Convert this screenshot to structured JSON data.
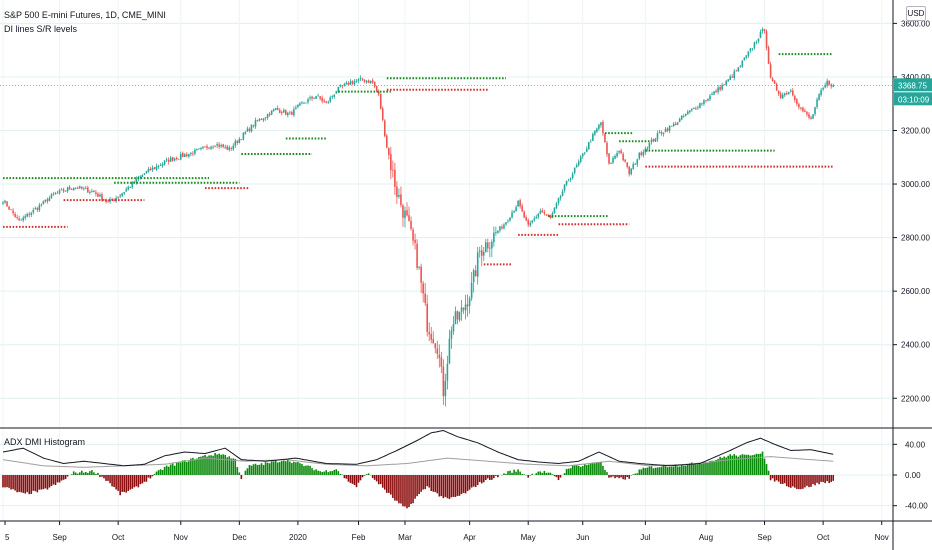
{
  "header": {
    "symbol_title": "S&P 500 E-mini Futures, 1D, CME_MINI",
    "indicator_title": "DI lines S/R levels",
    "currency_button": "USD"
  },
  "price_labels": {
    "last_price": "3368.75",
    "countdown": "03:10:09",
    "last_price_color": "#26a69a"
  },
  "sub_pane": {
    "title": "ADX DMI Histogram"
  },
  "colors": {
    "up": "#26a69a",
    "down": "#ef5350",
    "support": "#d32f2f",
    "resistance": "#1b8a1b",
    "hist_pos": "#0a8a0a",
    "hist_neg": "#8b0d0d",
    "adx_line": "#131722",
    "di_line": "#9e9e9e"
  },
  "chart_data": [
    {
      "type": "candlestick",
      "title": "S&P 500 E-mini Futures, 1D, CME_MINI",
      "ylim": [
        2130,
        3650
      ],
      "y_ticks": [
        2200,
        2400,
        2600,
        2800,
        3000,
        3200,
        3400,
        3600
      ],
      "y_tick_labels": [
        "2200.00",
        "2400.00",
        "2600.00",
        "2800.00",
        "3000.00",
        "3200.00",
        "3400.00",
        "3600.00"
      ],
      "x_axis_labels": [
        "5",
        "Sep",
        "Oct",
        "Nov",
        "Dec",
        "2020",
        "Feb",
        "Mar",
        "Apr",
        "May",
        "Jun",
        "Jul",
        "Aug",
        "Sep",
        "Oct",
        "Nov"
      ],
      "close_anchors": [
        [
          0,
          2940
        ],
        [
          8,
          2860
        ],
        [
          15,
          2900
        ],
        [
          25,
          2960
        ],
        [
          35,
          2990
        ],
        [
          45,
          2970
        ],
        [
          52,
          2930
        ],
        [
          58,
          2960
        ],
        [
          70,
          3040
        ],
        [
          82,
          3090
        ],
        [
          95,
          3120
        ],
        [
          105,
          3150
        ],
        [
          112,
          3130
        ],
        [
          125,
          3230
        ],
        [
          135,
          3280
        ],
        [
          142,
          3260
        ],
        [
          148,
          3300
        ],
        [
          155,
          3330
        ],
        [
          160,
          3300
        ],
        [
          165,
          3350
        ],
        [
          172,
          3380
        ],
        [
          178,
          3390
        ],
        [
          183,
          3380
        ],
        [
          186,
          3330
        ],
        [
          190,
          3140
        ],
        [
          195,
          2970
        ],
        [
          200,
          2860
        ],
        [
          205,
          2720
        ],
        [
          210,
          2480
        ],
        [
          215,
          2400
        ],
        [
          218,
          2230
        ],
        [
          222,
          2470
        ],
        [
          227,
          2520
        ],
        [
          232,
          2610
        ],
        [
          236,
          2750
        ],
        [
          242,
          2800
        ],
        [
          248,
          2850
        ],
        [
          255,
          2930
        ],
        [
          260,
          2840
        ],
        [
          266,
          2900
        ],
        [
          271,
          2870
        ],
        [
          278,
          2990
        ],
        [
          285,
          3080
        ],
        [
          292,
          3180
        ],
        [
          296,
          3230
        ],
        [
          300,
          3070
        ],
        [
          305,
          3130
        ],
        [
          310,
          3040
        ],
        [
          315,
          3110
        ],
        [
          320,
          3150
        ],
        [
          325,
          3190
        ],
        [
          332,
          3220
        ],
        [
          338,
          3260
        ],
        [
          345,
          3300
        ],
        [
          352,
          3340
        ],
        [
          358,
          3380
        ],
        [
          364,
          3430
        ],
        [
          370,
          3500
        ],
        [
          374,
          3550
        ],
        [
          377,
          3580
        ],
        [
          380,
          3390
        ],
        [
          385,
          3330
        ],
        [
          390,
          3350
        ],
        [
          395,
          3280
        ],
        [
          400,
          3240
        ],
        [
          404,
          3330
        ],
        [
          408,
          3380
        ],
        [
          411,
          3368.75
        ]
      ],
      "sr_levels": [
        {
          "kind": "resistance",
          "price": 3022,
          "start": 0,
          "end": 102
        },
        {
          "kind": "resistance",
          "price": 3005,
          "start": 55,
          "end": 117
        },
        {
          "kind": "support",
          "price": 2985,
          "start": 100,
          "end": 122
        },
        {
          "kind": "support",
          "price": 2940,
          "start": 30,
          "end": 70
        },
        {
          "kind": "support",
          "price": 2840,
          "start": 0,
          "end": 32
        },
        {
          "kind": "resistance",
          "price": 3112,
          "start": 118,
          "end": 153
        },
        {
          "kind": "resistance",
          "price": 3170,
          "start": 140,
          "end": 160
        },
        {
          "kind": "resistance",
          "price": 3345,
          "start": 166,
          "end": 192
        },
        {
          "kind": "resistance",
          "price": 3395,
          "start": 190,
          "end": 249
        },
        {
          "kind": "support",
          "price": 3352,
          "start": 190,
          "end": 240
        },
        {
          "kind": "support",
          "price": 2700,
          "start": 238,
          "end": 252
        },
        {
          "kind": "support",
          "price": 2810,
          "start": 255,
          "end": 275
        },
        {
          "kind": "resistance",
          "price": 2880,
          "start": 270,
          "end": 300
        },
        {
          "kind": "support",
          "price": 2850,
          "start": 275,
          "end": 310
        },
        {
          "kind": "resistance",
          "price": 3190,
          "start": 298,
          "end": 312
        },
        {
          "kind": "resistance",
          "price": 3160,
          "start": 305,
          "end": 320
        },
        {
          "kind": "resistance",
          "price": 3125,
          "start": 318,
          "end": 382
        },
        {
          "kind": "support",
          "price": 3065,
          "start": 318,
          "end": 415
        },
        {
          "kind": "resistance",
          "price": 3485,
          "start": 384,
          "end": 415
        }
      ]
    },
    {
      "type": "histogram_with_lines",
      "title": "ADX DMI Histogram",
      "ylim": [
        -60,
        60
      ],
      "y_ticks": [
        -40,
        0,
        40
      ],
      "y_tick_labels": [
        "-40.00",
        "0.00",
        "40.00"
      ],
      "hist_anchors": [
        [
          0,
          -15
        ],
        [
          10,
          -25
        ],
        [
          20,
          -20
        ],
        [
          28,
          -10
        ],
        [
          35,
          3
        ],
        [
          45,
          5
        ],
        [
          52,
          -8
        ],
        [
          58,
          -25
        ],
        [
          65,
          -18
        ],
        [
          72,
          -5
        ],
        [
          80,
          10
        ],
        [
          90,
          18
        ],
        [
          100,
          25
        ],
        [
          108,
          28
        ],
        [
          115,
          20
        ],
        [
          118,
          -4
        ],
        [
          122,
          12
        ],
        [
          130,
          15
        ],
        [
          140,
          20
        ],
        [
          150,
          12
        ],
        [
          158,
          4
        ],
        [
          165,
          8
        ],
        [
          170,
          -6
        ],
        [
          175,
          -15
        ],
        [
          180,
          3
        ],
        [
          185,
          -8
        ],
        [
          190,
          -22
        ],
        [
          195,
          -35
        ],
        [
          200,
          -45
        ],
        [
          205,
          -28
        ],
        [
          210,
          -15
        ],
        [
          215,
          -25
        ],
        [
          220,
          -32
        ],
        [
          225,
          -28
        ],
        [
          230,
          -22
        ],
        [
          235,
          -12
        ],
        [
          240,
          -6
        ],
        [
          245,
          -2
        ],
        [
          250,
          4
        ],
        [
          255,
          6
        ],
        [
          260,
          -2
        ],
        [
          265,
          5
        ],
        [
          270,
          3
        ],
        [
          275,
          -6
        ],
        [
          280,
          10
        ],
        [
          285,
          12
        ],
        [
          292,
          15
        ],
        [
          296,
          18
        ],
        [
          300,
          -3
        ],
        [
          305,
          -5
        ],
        [
          310,
          -4
        ],
        [
          315,
          6
        ],
        [
          320,
          10
        ],
        [
          330,
          12
        ],
        [
          340,
          14
        ],
        [
          350,
          18
        ],
        [
          360,
          26
        ],
        [
          368,
          25
        ],
        [
          372,
          28
        ],
        [
          376,
          30
        ],
        [
          380,
          -5
        ],
        [
          385,
          -10
        ],
        [
          390,
          -15
        ],
        [
          395,
          -18
        ],
        [
          400,
          -14
        ],
        [
          405,
          -10
        ],
        [
          411,
          -8
        ]
      ],
      "adx_anchors": [
        [
          0,
          30
        ],
        [
          10,
          35
        ],
        [
          20,
          22
        ],
        [
          30,
          15
        ],
        [
          40,
          18
        ],
        [
          50,
          15
        ],
        [
          60,
          12
        ],
        [
          70,
          14
        ],
        [
          80,
          25
        ],
        [
          90,
          30
        ],
        [
          100,
          28
        ],
        [
          110,
          35
        ],
        [
          118,
          20
        ],
        [
          130,
          18
        ],
        [
          145,
          22
        ],
        [
          160,
          15
        ],
        [
          175,
          14
        ],
        [
          185,
          20
        ],
        [
          195,
          32
        ],
        [
          205,
          45
        ],
        [
          212,
          55
        ],
        [
          218,
          58
        ],
        [
          225,
          50
        ],
        [
          235,
          42
        ],
        [
          245,
          30
        ],
        [
          255,
          20
        ],
        [
          265,
          17
        ],
        [
          275,
          15
        ],
        [
          285,
          18
        ],
        [
          295,
          30
        ],
        [
          305,
          18
        ],
        [
          315,
          15
        ],
        [
          330,
          12
        ],
        [
          345,
          15
        ],
        [
          360,
          32
        ],
        [
          368,
          42
        ],
        [
          375,
          48
        ],
        [
          382,
          40
        ],
        [
          390,
          32
        ],
        [
          400,
          33
        ],
        [
          411,
          27
        ]
      ],
      "di_anchors": [
        [
          0,
          20
        ],
        [
          20,
          12
        ],
        [
          40,
          10
        ],
        [
          60,
          12
        ],
        [
          80,
          14
        ],
        [
          100,
          22
        ],
        [
          120,
          18
        ],
        [
          140,
          20
        ],
        [
          160,
          14
        ],
        [
          180,
          12
        ],
        [
          200,
          15
        ],
        [
          220,
          22
        ],
        [
          240,
          18
        ],
        [
          260,
          14
        ],
        [
          280,
          12
        ],
        [
          300,
          18
        ],
        [
          320,
          12
        ],
        [
          340,
          14
        ],
        [
          360,
          20
        ],
        [
          380,
          24
        ],
        [
          400,
          20
        ],
        [
          411,
          18
        ]
      ]
    }
  ]
}
